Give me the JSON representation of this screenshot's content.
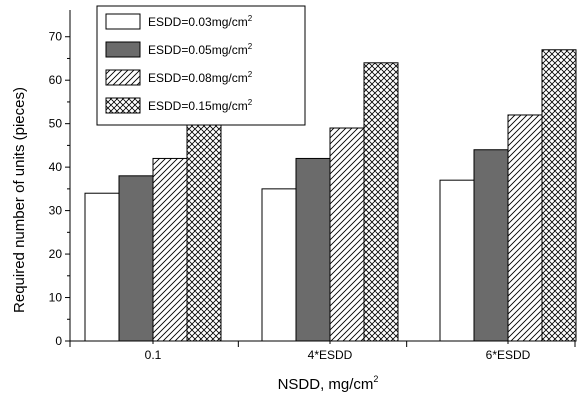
{
  "chart_data": {
    "type": "bar",
    "title": "",
    "xlabel": "NSDD,  mg/cm",
    "xlabel_sup": "2",
    "ylabel": "Required number of units (pieces)",
    "categories": [
      "0.1",
      "4*ESDD",
      "6*ESDD"
    ],
    "ylim": [
      0,
      75
    ],
    "yticks": [
      "0",
      "10",
      "20",
      "30",
      "40",
      "50",
      "60",
      "70"
    ],
    "grid": false,
    "legend_position": "top-left",
    "series": [
      {
        "name": "ESDD=0.03mg/cm",
        "name_sup": "2",
        "fill": "white",
        "values": [
          34,
          35,
          37
        ]
      },
      {
        "name": "ESDD=0.05mg/cm",
        "name_sup": "2",
        "fill": "gray",
        "color": "#6b6b6b",
        "values": [
          38,
          42,
          44
        ]
      },
      {
        "name": "ESDD=0.08mg/cm",
        "name_sup": "2",
        "fill": "diagonal-hatch",
        "values": [
          42,
          49,
          52
        ]
      },
      {
        "name": "ESDD=0.15mg/cm",
        "name_sup": "2",
        "fill": "cross-hatch",
        "values": [
          51,
          64,
          67
        ]
      }
    ]
  }
}
